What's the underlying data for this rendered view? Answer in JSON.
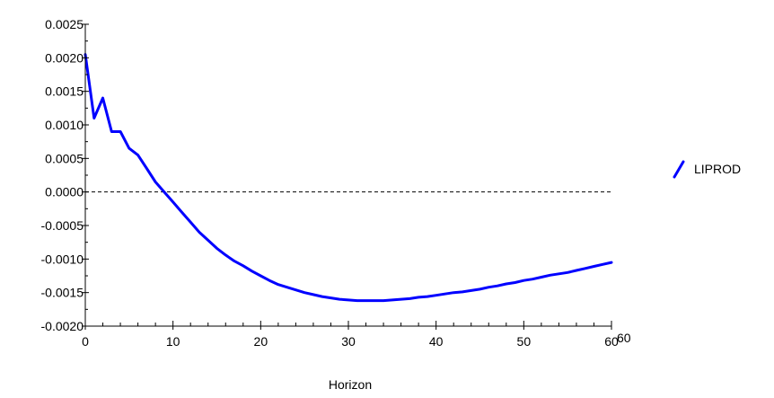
{
  "chart_data": {
    "type": "line",
    "title": "",
    "xlabel": "Horizon",
    "ylabel": "",
    "xlim": [
      0,
      60
    ],
    "ylim": [
      -0.002,
      0.0025
    ],
    "x_ticks": [
      0,
      10,
      20,
      30,
      40,
      50,
      60
    ],
    "x_tick_labels": [
      "0",
      "10",
      "20",
      "30",
      "40",
      "50",
      "60"
    ],
    "x_end_label": "60",
    "y_ticks": [
      0.0025,
      0.002,
      0.0015,
      0.001,
      0.0005,
      0.0,
      -0.0005,
      -0.001,
      -0.0015,
      -0.002
    ],
    "y_tick_labels": [
      "0.0025",
      "0.0020",
      "0.0015",
      "0.0010",
      "0.0005",
      "0.0000",
      "-0.0005",
      "-0.0010",
      "-0.0015",
      "-0.0020"
    ],
    "grid": false,
    "zero_line": "dashed",
    "legend_position": "right",
    "series": [
      {
        "name": "LIPROD",
        "color": "#0000ff",
        "x": [
          0,
          1,
          2,
          3,
          4,
          5,
          6,
          7,
          8,
          9,
          10,
          11,
          12,
          13,
          14,
          15,
          16,
          17,
          18,
          19,
          20,
          21,
          22,
          23,
          24,
          25,
          26,
          27,
          28,
          29,
          30,
          31,
          32,
          33,
          34,
          35,
          36,
          37,
          38,
          39,
          40,
          41,
          42,
          43,
          44,
          45,
          46,
          47,
          48,
          49,
          50,
          51,
          52,
          53,
          54,
          55,
          56,
          57,
          58,
          59,
          60
        ],
        "y": [
          0.00205,
          0.0011,
          0.0014,
          0.0009,
          0.0009,
          0.00065,
          0.00055,
          0.00035,
          0.00015,
          0.0,
          -0.00015,
          -0.0003,
          -0.00045,
          -0.0006,
          -0.00072,
          -0.00084,
          -0.00094,
          -0.00103,
          -0.0011,
          -0.00118,
          -0.00125,
          -0.00132,
          -0.00138,
          -0.00142,
          -0.00146,
          -0.0015,
          -0.00153,
          -0.00156,
          -0.00158,
          -0.0016,
          -0.00161,
          -0.00162,
          -0.00162,
          -0.00162,
          -0.00162,
          -0.00161,
          -0.0016,
          -0.00159,
          -0.00157,
          -0.00156,
          -0.00154,
          -0.00152,
          -0.0015,
          -0.00149,
          -0.00147,
          -0.00145,
          -0.00142,
          -0.0014,
          -0.00137,
          -0.00135,
          -0.00132,
          -0.0013,
          -0.00127,
          -0.00124,
          -0.00122,
          -0.0012,
          -0.00117,
          -0.00114,
          -0.00111,
          -0.00108,
          -0.00105
        ]
      }
    ]
  }
}
